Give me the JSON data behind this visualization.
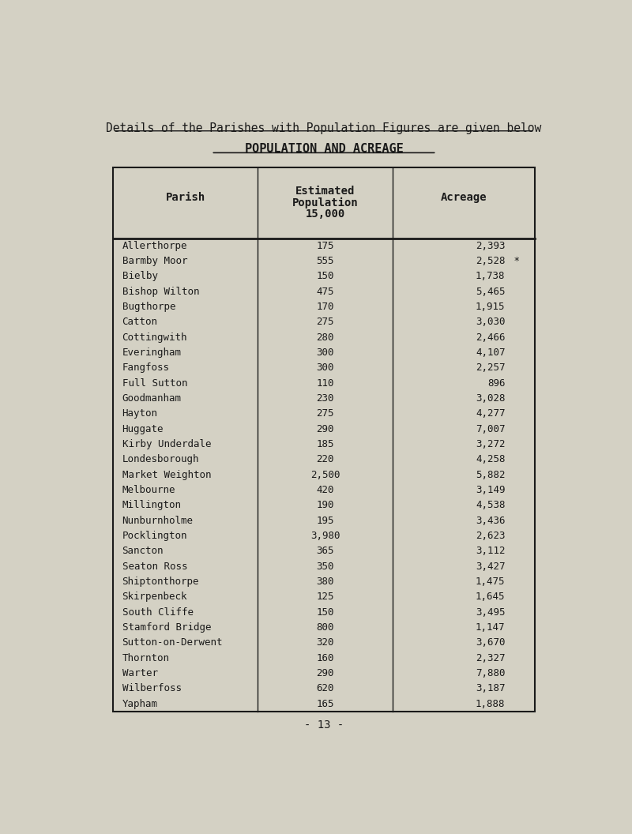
{
  "title": "Details of the Parishes with Population Figures are given below",
  "subtitle": "POPULATION AND ACREAGE",
  "parishes": [
    "Allerthorpe",
    "Barmby Moor",
    "Bielby",
    "Bishop Wilton",
    "Bugthorpe",
    "Catton",
    "Cottingwith",
    "Everingham",
    "Fangfoss",
    "Full Sutton",
    "Goodmanham",
    "Hayton",
    "Huggate",
    "Kirby Underdale",
    "Londesborough",
    "Market Weighton",
    "Melbourne",
    "Millington",
    "Nunburnholme",
    "Pocklington",
    "Sancton",
    "Seaton Ross",
    "Shiptonthorpe",
    "Skirpenbeck",
    "South Cliffe",
    "Stamford Bridge",
    "Sutton-on-Derwent",
    "Thornton",
    "Warter",
    "Wilberfoss",
    "Yapham"
  ],
  "populations": [
    175,
    555,
    150,
    475,
    170,
    275,
    280,
    300,
    300,
    110,
    230,
    275,
    290,
    185,
    220,
    2500,
    420,
    190,
    195,
    3980,
    365,
    350,
    380,
    125,
    150,
    800,
    320,
    160,
    290,
    620,
    165
  ],
  "acreages": [
    2393,
    2528,
    1738,
    5465,
    1915,
    3030,
    2466,
    4107,
    2257,
    896,
    3028,
    4277,
    7007,
    3272,
    4258,
    5882,
    3149,
    4538,
    3436,
    2623,
    3112,
    3427,
    1475,
    1645,
    3495,
    1147,
    3670,
    2327,
    7880,
    3187,
    1888
  ],
  "barmby_star_index": 1,
  "page_number": "- 13 -",
  "bg_color": "#d4d1c4",
  "text_color": "#1a1a1a",
  "font_family": "monospace"
}
